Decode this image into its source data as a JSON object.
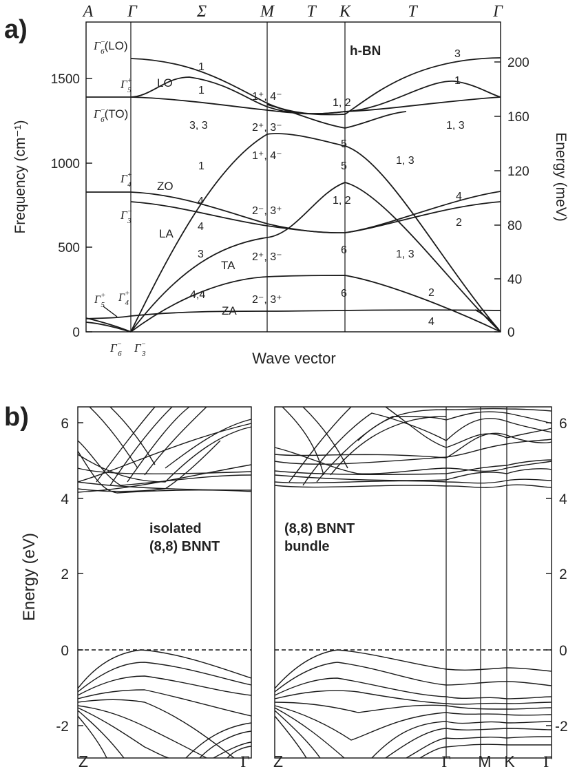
{
  "panel_labels": {
    "a": "a)",
    "b": "b)"
  },
  "chart_data": [
    {
      "type": "line",
      "title": "h-BN",
      "xlabel": "Wave vector",
      "ylabel": "Frequency (cm⁻¹)",
      "ylabel_right": "Energy (meV)",
      "ylim": [
        0,
        1750
      ],
      "ylim_right_meV": [
        0,
        217
      ],
      "y_ticks": [
        0,
        500,
        1000,
        1500
      ],
      "y_ticks_right": [
        0,
        40,
        80,
        120,
        160,
        200
      ],
      "top_labels": [
        "A",
        "Γ",
        "Σ",
        "M",
        "T",
        "K",
        "T",
        "Γ"
      ],
      "bottom_labels": [
        {
          "sym": "Γ",
          "sup": "−",
          "sub": "6"
        },
        {
          "sym": "Γ",
          "sup": "−",
          "sub": "3"
        }
      ],
      "grid": false,
      "annotations": {
        "gammas": [
          {
            "sym": "Γ",
            "sup": "−",
            "sub": "6",
            "suffix": "(LO)"
          },
          {
            "sym": "Γ",
            "sup": "+",
            "sub": "5",
            "suffix": ""
          },
          {
            "sym": "Γ",
            "sup": "−",
            "sub": "6",
            "suffix": "(TO)"
          },
          {
            "sym": "Γ",
            "sup": "+",
            "sub": "4",
            "suffix": ""
          },
          {
            "sym": "Γ",
            "sup": "−",
            "sub": "3",
            "suffix": ""
          },
          {
            "sym": "Γ",
            "sup": "+",
            "sub": "5",
            "suffix": ""
          },
          {
            "sym": "Γ",
            "sup": "+",
            "sub": "4",
            "suffix": ""
          }
        ],
        "modes": [
          "LO",
          "ZO",
          "LA",
          "TA",
          "ZA"
        ],
        "numbers": [
          {
            "text": "1"
          },
          {
            "text": "1"
          },
          {
            "text": "3, 3"
          },
          {
            "text": "1"
          },
          {
            "text": "4"
          },
          {
            "text": "4"
          },
          {
            "text": "3"
          },
          {
            "text": "4,4"
          },
          {
            "sup": "1⁺, 4⁻"
          },
          {
            "sup": "2⁺, 3⁻"
          },
          {
            "sup": "1⁺, 4⁻"
          },
          {
            "sup": "2⁻, 3⁺"
          },
          {
            "sup": "2⁺, 3⁻"
          },
          {
            "sup": "2⁻, 3⁺"
          },
          {
            "text": "1, 2"
          },
          {
            "text": "5"
          },
          {
            "text": "5"
          },
          {
            "text": "1, 2"
          },
          {
            "text": "6"
          },
          {
            "text": "6"
          },
          {
            "text": "3"
          },
          {
            "text": "1"
          },
          {
            "text": "1, 3"
          },
          {
            "text": "1, 3"
          },
          {
            "text": "4"
          },
          {
            "text": "2"
          },
          {
            "text": "1, 3"
          },
          {
            "text": "2"
          },
          {
            "text": "4"
          }
        ]
      },
      "series": [
        {
          "x": [
            0.0,
            0.17,
            0.43,
            0.56,
            0.72,
            0.83,
            1.0
          ],
          "values": [
            1610,
            1540,
            1320,
            1290,
            1300,
            1480,
            1390
          ]
        },
        {
          "x": [
            0.0,
            0.17,
            0.43,
            0.56,
            0.72,
            1.0
          ],
          "values": [
            1610,
            1450,
            1300,
            1200,
            1280,
            1620
          ]
        },
        {
          "x": [
            0.0,
            0.17,
            0.43,
            0.56,
            0.72,
            1.0
          ],
          "values": [
            1390,
            1350,
            1290,
            1310,
            1310,
            1390
          ]
        },
        {
          "x": [
            0.0,
            0.17,
            0.3,
            0.43,
            0.56,
            1.0
          ],
          "values": [
            830,
            800,
            700,
            620,
            590,
            770
          ]
        },
        {
          "x": [
            0.0,
            0.17,
            0.3,
            0.43,
            0.56,
            1.0
          ],
          "values": [
            770,
            740,
            660,
            600,
            590,
            830
          ]
        },
        {
          "x": [
            0.0,
            0.17,
            0.43,
            0.56,
            0.72,
            1.0
          ],
          "values": [
            0,
            600,
            1170,
            1070,
            900,
            0
          ]
        },
        {
          "x": [
            0.0,
            0.17,
            0.43,
            0.56,
            0.72,
            1.0
          ],
          "values": [
            0,
            340,
            570,
            880,
            690,
            0
          ]
        },
        {
          "x": [
            0.0,
            0.17,
            0.43,
            0.56,
            0.72,
            1.0
          ],
          "values": [
            0,
            210,
            330,
            340,
            250,
            0
          ]
        },
        {
          "x": [
            0.0,
            0.17,
            0.43,
            0.56,
            0.72,
            1.0
          ],
          "values": [
            120,
            130,
            130,
            140,
            130,
            130
          ]
        }
      ]
    },
    {
      "type": "line",
      "title": "isolated (8,8) BNNT",
      "ylabel": "Energy (eV)",
      "ylim": [
        -2.5,
        6.5
      ],
      "y_ticks": [
        -2,
        0,
        2,
        4,
        6
      ],
      "x_tick_labels": [
        "Z",
        "Γ"
      ],
      "legend_text": [
        "isolated",
        "(8,8) BNNT"
      ],
      "fermi_level": 0,
      "grid": false
    },
    {
      "type": "line",
      "title": "(8,8) BNNT bundle",
      "ylim": [
        -2.5,
        6.5
      ],
      "y_ticks": [
        -2,
        0,
        2,
        4,
        6
      ],
      "x_tick_labels": [
        "Z",
        "Γ",
        "M",
        "K",
        "Γ"
      ],
      "legend_text": [
        "(8,8) BNNT",
        "bundle"
      ],
      "fermi_level": 0,
      "grid": false
    }
  ]
}
